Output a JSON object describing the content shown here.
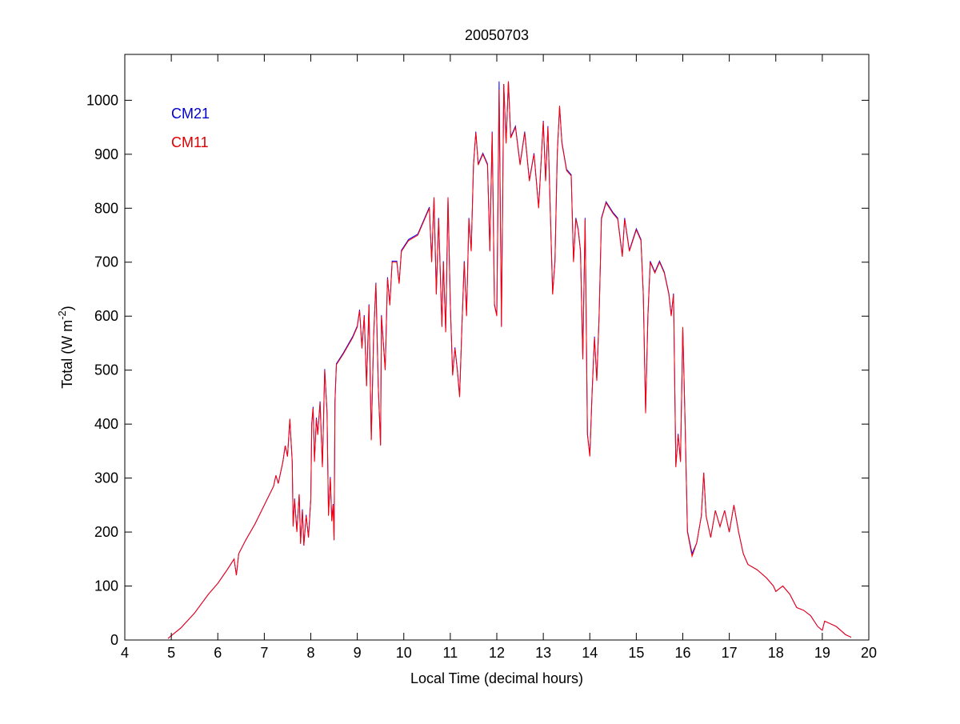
{
  "chart_data": {
    "type": "line",
    "title": "20050703",
    "xlabel": "Local Time (decimal hours)",
    "ylabel": "Total (W m-2)",
    "ylabel_main": "Total (W m",
    "ylabel_sup": "-2",
    "ylabel_end": ")",
    "xlim": [
      4,
      20
    ],
    "ylim": [
      0,
      1085
    ],
    "xticks": [
      4,
      5,
      6,
      7,
      8,
      9,
      10,
      11,
      12,
      13,
      14,
      15,
      16,
      17,
      18,
      19,
      20
    ],
    "yticks": [
      0,
      100,
      200,
      300,
      400,
      500,
      600,
      700,
      800,
      900,
      1000
    ],
    "grid": false,
    "legend_placement": "top-left",
    "x": [
      4.93,
      5.0,
      5.2,
      5.5,
      5.8,
      6.0,
      6.2,
      6.35,
      6.4,
      6.45,
      6.6,
      6.8,
      7.0,
      7.2,
      7.25,
      7.3,
      7.4,
      7.45,
      7.5,
      7.55,
      7.6,
      7.62,
      7.65,
      7.7,
      7.75,
      7.78,
      7.82,
      7.85,
      7.9,
      7.95,
      8.0,
      8.02,
      8.05,
      8.08,
      8.12,
      8.15,
      8.2,
      8.25,
      8.3,
      8.35,
      8.38,
      8.42,
      8.45,
      8.48,
      8.5,
      8.52,
      8.55,
      8.7,
      8.9,
      9.0,
      9.05,
      9.1,
      9.15,
      9.2,
      9.25,
      9.3,
      9.35,
      9.4,
      9.45,
      9.5,
      9.52,
      9.6,
      9.65,
      9.7,
      9.75,
      9.85,
      9.9,
      9.95,
      10.1,
      10.3,
      10.45,
      10.55,
      10.6,
      10.65,
      10.7,
      10.75,
      10.82,
      10.85,
      10.9,
      10.95,
      11.0,
      11.05,
      11.1,
      11.15,
      11.2,
      11.25,
      11.3,
      11.35,
      11.4,
      11.45,
      11.5,
      11.55,
      11.6,
      11.7,
      11.8,
      11.85,
      11.9,
      11.95,
      12.0,
      12.05,
      12.1,
      12.15,
      12.2,
      12.25,
      12.3,
      12.4,
      12.5,
      12.6,
      12.7,
      12.8,
      12.9,
      13.0,
      13.05,
      13.1,
      13.2,
      13.25,
      13.3,
      13.35,
      13.4,
      13.5,
      13.6,
      13.65,
      13.7,
      13.75,
      13.8,
      13.85,
      13.9,
      13.95,
      14.0,
      14.05,
      14.1,
      14.15,
      14.2,
      14.25,
      14.35,
      14.5,
      14.6,
      14.7,
      14.75,
      14.85,
      15.0,
      15.1,
      15.15,
      15.2,
      15.25,
      15.3,
      15.4,
      15.5,
      15.6,
      15.7,
      15.75,
      15.8,
      15.85,
      15.9,
      15.95,
      16.0,
      16.05,
      16.1,
      16.2,
      16.3,
      16.4,
      16.45,
      16.5,
      16.6,
      16.7,
      16.8,
      16.9,
      17.0,
      17.1,
      17.2,
      17.3,
      17.4,
      17.6,
      17.8,
      17.95,
      18.0,
      18.15,
      18.3,
      18.45,
      18.6,
      18.75,
      18.9,
      19.0,
      19.05,
      19.3,
      19.5,
      19.62
    ],
    "series": [
      {
        "name": "CM21",
        "color": "#0000ff",
        "values": [
          3,
          8,
          22,
          50,
          85,
          105,
          130,
          150,
          120,
          160,
          185,
          215,
          250,
          285,
          305,
          290,
          330,
          360,
          340,
          408,
          330,
          212,
          262,
          202,
          270,
          180,
          242,
          175,
          232,
          190,
          262,
          402,
          432,
          332,
          412,
          382,
          442,
          322,
          502,
          422,
          232,
          302,
          222,
          252,
          185,
          442,
          512,
          532,
          562,
          582,
          612,
          542,
          602,
          472,
          622,
          372,
          562,
          662,
          472,
          362,
          602,
          502,
          672,
          622,
          702,
          702,
          662,
          722,
          742,
          752,
          782,
          802,
          702,
          820,
          642,
          782,
          582,
          702,
          572,
          820,
          622,
          492,
          542,
          502,
          452,
          582,
          702,
          602,
          782,
          722,
          882,
          942,
          882,
          902,
          882,
          722,
          942,
          622,
          602,
          1035,
          582,
          1030,
          922,
          1035,
          932,
          952,
          882,
          942,
          852,
          902,
          802,
          962,
          852,
          952,
          642,
          702,
          902,
          988,
          922,
          872,
          862,
          702,
          782,
          762,
          722,
          522,
          782,
          382,
          342,
          462,
          562,
          482,
          602,
          782,
          812,
          792,
          782,
          712,
          782,
          722,
          762,
          742,
          642,
          422,
          602,
          702,
          682,
          702,
          682,
          642,
          602,
          642,
          322,
          382,
          332,
          578,
          402,
          202,
          160,
          180,
          230,
          310,
          230,
          190,
          240,
          210,
          240,
          200,
          250,
          200,
          160,
          140,
          130,
          115,
          100,
          90,
          100,
          85,
          60,
          55,
          45,
          25,
          18,
          35,
          25,
          10,
          5
        ]
      },
      {
        "name": "CM11",
        "color": "#ff0000",
        "values": [
          3,
          8,
          22,
          50,
          85,
          105,
          130,
          150,
          120,
          160,
          185,
          215,
          250,
          285,
          305,
          290,
          330,
          360,
          340,
          410,
          330,
          210,
          260,
          200,
          270,
          178,
          240,
          175,
          230,
          190,
          260,
          400,
          430,
          330,
          410,
          380,
          440,
          320,
          500,
          420,
          230,
          300,
          220,
          250,
          185,
          440,
          510,
          530,
          560,
          580,
          610,
          540,
          600,
          470,
          620,
          370,
          560,
          660,
          470,
          360,
          600,
          500,
          670,
          620,
          700,
          700,
          660,
          720,
          740,
          750,
          780,
          800,
          700,
          820,
          640,
          780,
          580,
          700,
          570,
          820,
          620,
          490,
          540,
          500,
          450,
          580,
          700,
          600,
          780,
          720,
          880,
          940,
          880,
          900,
          880,
          720,
          940,
          620,
          600,
          1020,
          580,
          1030,
          920,
          1035,
          930,
          950,
          880,
          940,
          850,
          900,
          800,
          960,
          850,
          950,
          640,
          700,
          900,
          990,
          920,
          870,
          860,
          700,
          780,
          760,
          720,
          520,
          780,
          380,
          340,
          460,
          560,
          480,
          600,
          780,
          810,
          790,
          780,
          710,
          780,
          720,
          760,
          740,
          640,
          420,
          600,
          700,
          680,
          700,
          680,
          640,
          600,
          640,
          320,
          380,
          330,
          580,
          400,
          200,
          155,
          180,
          230,
          310,
          230,
          190,
          240,
          210,
          240,
          200,
          250,
          200,
          160,
          140,
          130,
          115,
          100,
          90,
          100,
          85,
          60,
          55,
          45,
          25,
          18,
          35,
          25,
          10,
          5
        ]
      }
    ]
  }
}
